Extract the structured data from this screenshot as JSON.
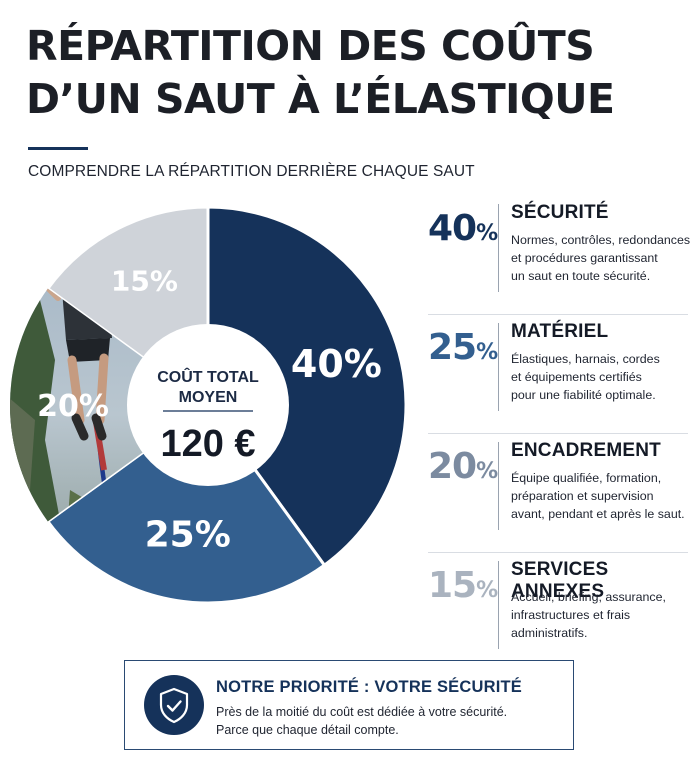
{
  "header": {
    "title_line1": "RÉPARTITION DES COÛTS",
    "title_line2": "D’UN SAUT À L’ÉLASTIQUE",
    "subtitle": "COMPRENDRE LA RÉPARTITION DERRIÈRE CHAQUE SAUT"
  },
  "center": {
    "label_line1": "COÛT TOTAL",
    "label_line2": "MOYEN",
    "value": "120 €"
  },
  "chart_data": {
    "type": "pie",
    "categories": [
      "SÉCURITÉ",
      "MATÉRIEL",
      "ENCADREMENT",
      "SERVICES ANNEXES"
    ],
    "values": [
      40,
      25,
      20,
      15
    ],
    "labels": [
      "40%",
      "25%",
      "20%",
      "15%"
    ],
    "colors": [
      "#15325a",
      "#335f8f",
      "#7c8ba0",
      "#cfd3d9"
    ],
    "start": "top, clockwise",
    "donut": true
  },
  "legend": [
    {
      "number": "40",
      "symbol": "%",
      "heading": "SÉCURITÉ",
      "lines": [
        "Normes, contrôles, redondances",
        "et procédures garantissant",
        "un saut en toute sécurité."
      ],
      "color": "#15325a"
    },
    {
      "number": "25",
      "symbol": "%",
      "heading": "MATÉRIEL",
      "lines": [
        "Élastiques, harnais, cordes",
        "et équipements certifiés",
        "pour une fiabilité optimale."
      ],
      "color": "#335f8f"
    },
    {
      "number": "20",
      "symbol": "%",
      "heading": "ENCADREMENT",
      "lines": [
        "Équipe qualifiée, formation,",
        "préparation et supervision",
        "avant, pendant et après le saut."
      ],
      "color": "#7c8ba0"
    },
    {
      "number": "15",
      "symbol": "%",
      "heading": "SERVICES ANNEXES",
      "lines": [
        "Accueil, briefing, assurance,",
        "infrastructures et frais",
        "administratifs."
      ],
      "color": "#aab3bf"
    }
  ],
  "priority": {
    "icon": "shield-check-icon",
    "title": "NOTRE PRIORITÉ : VOTRE SÉCURITÉ",
    "line1": "Près de la moitié du coût est dédiée à votre sécurité.",
    "line2": "Parce que chaque détail compte."
  }
}
